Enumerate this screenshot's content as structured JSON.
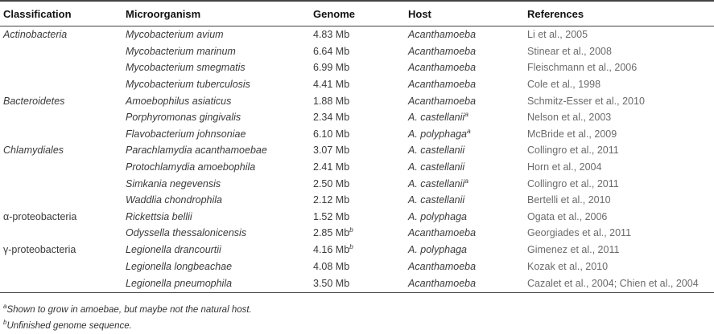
{
  "table": {
    "headers": [
      "Classification",
      "Microorganism",
      "Genome",
      "Host",
      "References"
    ],
    "rows": [
      {
        "classification": "Actinobacteria",
        "microorganism": "Mycobacterium avium",
        "genome": "4.83 Mb",
        "genome_note": "",
        "host": "Acanthamoeba",
        "host_note": "",
        "reference": "Li et al., 2005"
      },
      {
        "classification": "",
        "microorganism": "Mycobacterium marinum",
        "genome": "6.64 Mb",
        "genome_note": "",
        "host": "Acanthamoeba",
        "host_note": "",
        "reference": "Stinear et al., 2008"
      },
      {
        "classification": "",
        "microorganism": "Mycobacterium smegmatis",
        "genome": "6.99 Mb",
        "genome_note": "",
        "host": "Acanthamoeba",
        "host_note": "",
        "reference": "Fleischmann et al., 2006"
      },
      {
        "classification": "",
        "microorganism": "Mycobacterium tuberculosis",
        "genome": "4.41 Mb",
        "genome_note": "",
        "host": "Acanthamoeba",
        "host_note": "",
        "reference": "Cole et al., 1998"
      },
      {
        "classification": "Bacteroidetes",
        "microorganism": "Amoebophilus asiaticus",
        "genome": "1.88 Mb",
        "genome_note": "",
        "host": "Acanthamoeba",
        "host_note": "",
        "reference": "Schmitz-Esser et al., 2010"
      },
      {
        "classification": "",
        "microorganism": "Porphyromonas gingivalis",
        "genome": "2.34 Mb",
        "genome_note": "",
        "host": "A. castellanii",
        "host_note": "a",
        "reference": "Nelson et al., 2003"
      },
      {
        "classification": "",
        "microorganism": "Flavobacterium johnsoniae",
        "genome": "6.10 Mb",
        "genome_note": "",
        "host": "A. polyphaga",
        "host_note": "a",
        "reference": "McBride et al., 2009"
      },
      {
        "classification": "Chlamydiales",
        "microorganism": "Parachlamydia acanthamoebae",
        "genome": "3.07 Mb",
        "genome_note": "",
        "host": "A. castellanii",
        "host_note": "",
        "reference": "Collingro et al., 2011"
      },
      {
        "classification": "",
        "microorganism": "Protochlamydia amoebophila",
        "genome": "2.41 Mb",
        "genome_note": "",
        "host": "A. castellanii",
        "host_note": "",
        "reference": "Horn et al., 2004"
      },
      {
        "classification": "",
        "microorganism": "Simkania negevensis",
        "genome": "2.50 Mb",
        "genome_note": "",
        "host": "A. castellanii",
        "host_note": "a",
        "reference": "Collingro et al., 2011"
      },
      {
        "classification": "",
        "microorganism": "Waddlia chondrophila",
        "genome": "2.12 Mb",
        "genome_note": "",
        "host": "A. castellanii",
        "host_note": "",
        "reference": "Bertelli et al., 2010"
      },
      {
        "classification": "α-proteobacteria",
        "microorganism": "Rickettsia bellii",
        "genome": "1.52 Mb",
        "genome_note": "",
        "host": "A. polyphaga",
        "host_note": "",
        "reference": "Ogata et al., 2006"
      },
      {
        "classification": "",
        "microorganism": "Odyssella thessalonicensis",
        "genome": "2.85 Mb",
        "genome_note": "b",
        "host": "Acanthamoeba",
        "host_note": "",
        "reference": "Georgiades et al., 2011"
      },
      {
        "classification": "γ-proteobacteria",
        "microorganism": "Legionella drancourtii",
        "genome": "4.16 Mb",
        "genome_note": "b",
        "host": "A. polyphaga",
        "host_note": "",
        "reference": "Gimenez et al., 2011"
      },
      {
        "classification": "",
        "microorganism": "Legionella longbeachae",
        "genome": "4.08 Mb",
        "genome_note": "",
        "host": "Acanthamoeba",
        "host_note": "",
        "reference": "Kozak et al., 2010"
      },
      {
        "classification": "",
        "microorganism": "Legionella pneumophila",
        "genome": "3.50 Mb",
        "genome_note": "",
        "host": "Acanthamoeba",
        "host_note": "",
        "reference": "Cazalet et al., 2004; Chien et al., 2004"
      }
    ]
  },
  "footnotes": [
    {
      "mark": "a",
      "text": "Shown to grow in amoebae, but maybe not the natural host."
    },
    {
      "mark": "b",
      "text": "Unfinished genome sequence."
    }
  ]
}
